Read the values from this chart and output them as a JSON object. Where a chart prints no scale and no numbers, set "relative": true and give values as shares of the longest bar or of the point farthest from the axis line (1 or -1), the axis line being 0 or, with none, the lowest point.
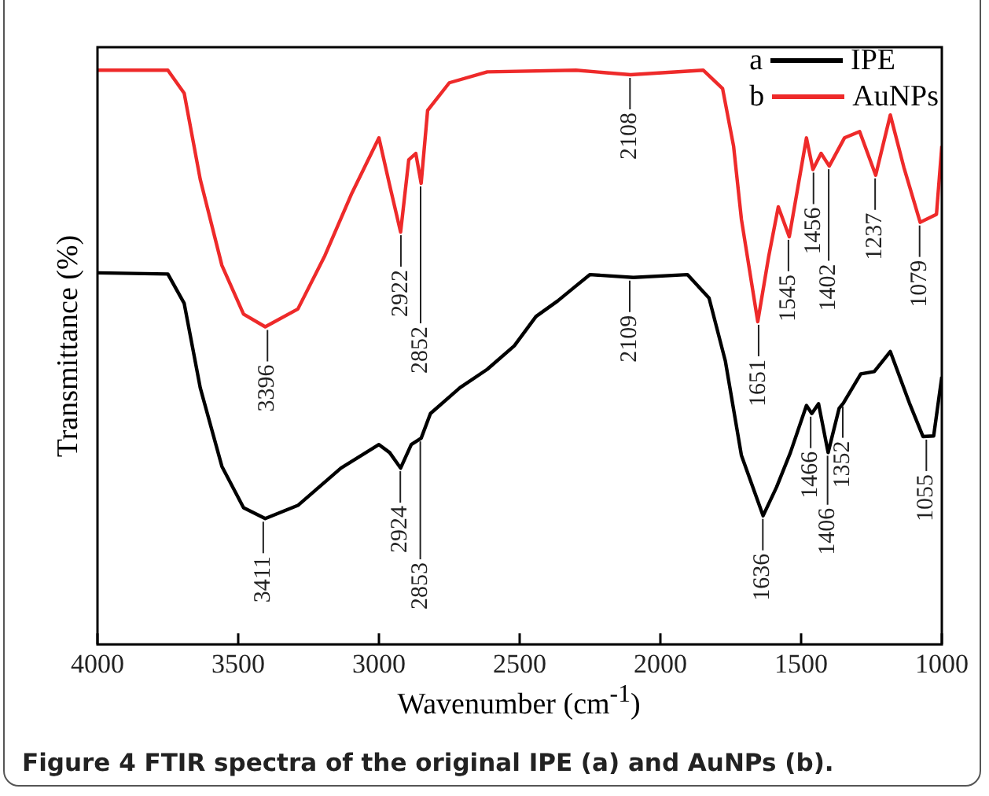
{
  "chart_data": {
    "type": "line",
    "title": "Figure 4 FTIR spectra of the original IPE (a) and AuNPs (b).",
    "xlabel": "Wavenumber (cm$^{-1}$)",
    "ylabel": "Transmittance (%)",
    "relative": true,
    "xlim": [
      4000,
      1000
    ],
    "xticks": [
      4000,
      3500,
      3000,
      2500,
      2000,
      1500,
      1000
    ],
    "legend": "top right",
    "grid": false,
    "marker": "none",
    "line_style": "solid",
    "series": [
      {
        "name": "IPE",
        "color": "#000000",
        "x": [
          4000,
          3750,
          3692,
          3635,
          3558,
          3481,
          3404,
          3288,
          3135,
          3000,
          2962,
          2923,
          2885,
          2850,
          2817,
          2712,
          2615,
          2519,
          2442,
          2365,
          2308,
          2250,
          2096,
          1904,
          1827,
          1769,
          1712,
          1635,
          1587,
          1538,
          1481,
          1462,
          1438,
          1404,
          1365,
          1350,
          1288,
          1240,
          1183,
          1115,
          1067,
          1029,
          1000
        ],
        "values": [
          0.647,
          0.645,
          0.594,
          0.447,
          0.31,
          0.238,
          0.219,
          0.242,
          0.307,
          0.348,
          0.334,
          0.307,
          0.348,
          0.359,
          0.402,
          0.447,
          0.479,
          0.52,
          0.571,
          0.598,
          0.621,
          0.644,
          0.639,
          0.644,
          0.603,
          0.493,
          0.329,
          0.224,
          0.274,
          0.334,
          0.416,
          0.402,
          0.419,
          0.334,
          0.411,
          0.42,
          0.471,
          0.475,
          0.51,
          0.42,
          0.362,
          0.363,
          0.466
        ]
      },
      {
        "name": "AuNPs",
        "color": "#ee2a2a",
        "x": [
          4000,
          3750,
          3692,
          3635,
          3558,
          3481,
          3404,
          3288,
          3192,
          3096,
          3000,
          2962,
          2923,
          2894,
          2869,
          2850,
          2827,
          2750,
          2615,
          2300,
          2106,
          1848,
          1779,
          1740,
          1712,
          1654,
          1615,
          1581,
          1542,
          1481,
          1458,
          1429,
          1400,
          1346,
          1292,
          1235,
          1183,
          1135,
          1077,
          1019,
          1000
        ],
        "values": [
          1.0,
          1.0,
          0.96,
          0.81,
          0.66,
          0.575,
          0.553,
          0.584,
          0.677,
          0.786,
          0.882,
          0.8,
          0.718,
          0.844,
          0.855,
          0.803,
          0.93,
          0.978,
          0.997,
          1.0,
          0.992,
          1.0,
          0.968,
          0.868,
          0.74,
          0.562,
          0.676,
          0.762,
          0.71,
          0.882,
          0.827,
          0.855,
          0.833,
          0.882,
          0.893,
          0.817,
          0.922,
          0.831,
          0.735,
          0.749,
          0.868
        ]
      }
    ],
    "annotations": [
      "a",
      "b",
      {
        "text": "3396",
        "x": 3396,
        "y": 0.553
      },
      {
        "text": "2922",
        "x": 2922,
        "y": 0.718
      },
      {
        "text": "2852",
        "x": 2852,
        "y": 0.803
      },
      {
        "text": "2108",
        "x": 2108,
        "y": 0.992
      },
      {
        "text": "1651",
        "x": 1651,
        "y": 0.562
      },
      {
        "text": "1545",
        "x": 1545,
        "y": 0.71
      },
      {
        "text": "1456",
        "x": 1456,
        "y": 0.827
      },
      {
        "text": "1402",
        "x": 1402,
        "y": 0.833
      },
      {
        "text": "1237",
        "x": 1237,
        "y": 0.817
      },
      {
        "text": "1079",
        "x": 1079,
        "y": 0.735
      },
      {
        "text": "3411",
        "x": 3411,
        "y": 0.219
      },
      {
        "text": "2924",
        "x": 2924,
        "y": 0.307
      },
      {
        "text": "2853",
        "x": 2853,
        "y": 0.359
      },
      {
        "text": "2109",
        "x": 2109,
        "y": 0.639
      },
      {
        "text": "1636",
        "x": 1636,
        "y": 0.224
      },
      {
        "text": "1466",
        "x": 1466,
        "y": 0.402
      },
      {
        "text": "1406",
        "x": 1406,
        "y": 0.334
      },
      {
        "text": "1352",
        "x": 1352,
        "y": 0.42
      },
      {
        "text": "1055",
        "x": 1055,
        "y": 0.362
      }
    ]
  }
}
